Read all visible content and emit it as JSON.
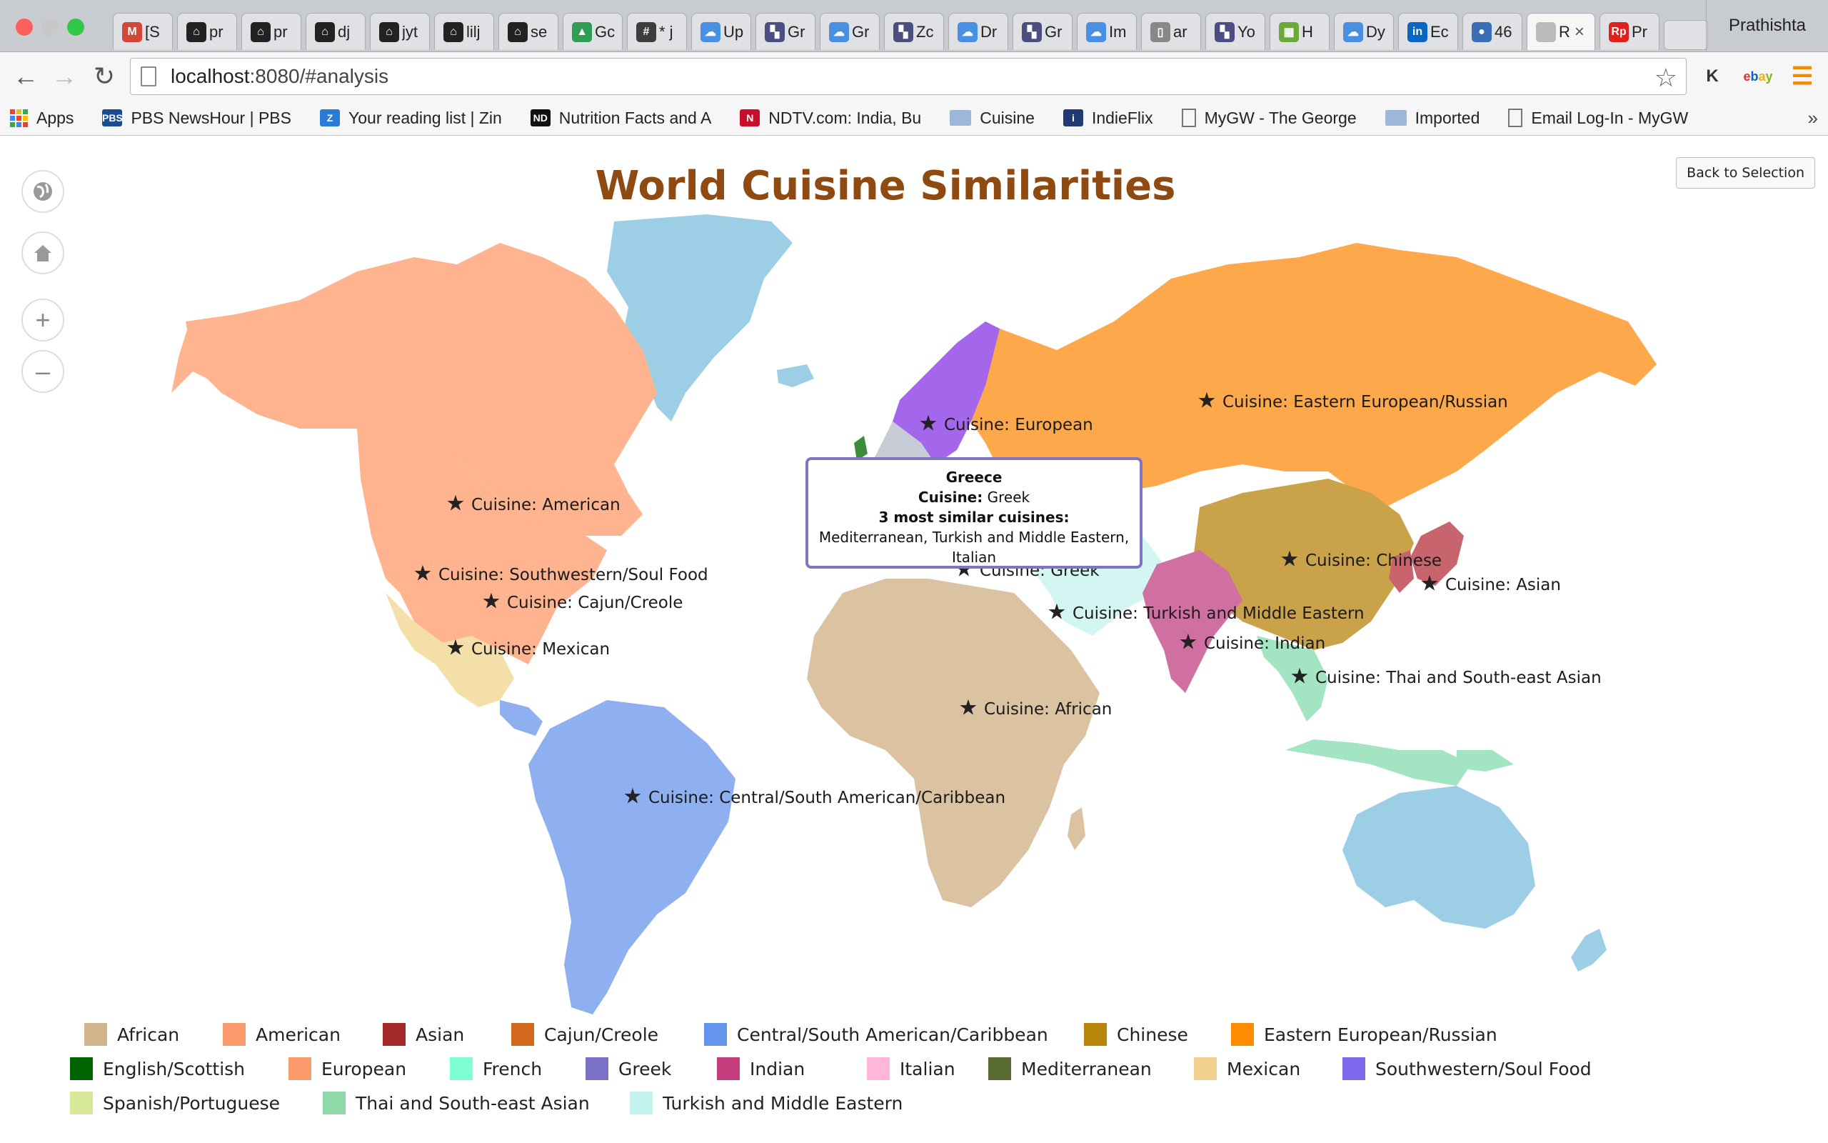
{
  "browser": {
    "tabs": [
      {
        "label": "[S",
        "icon": "gmail-icon",
        "color": "#d44638",
        "glyph": "M"
      },
      {
        "label": "pr",
        "icon": "github-icon",
        "color": "#222222",
        "glyph": "⌂"
      },
      {
        "label": "pr",
        "icon": "github-icon",
        "color": "#222222",
        "glyph": "⌂"
      },
      {
        "label": "dj",
        "icon": "github-icon",
        "color": "#222222",
        "glyph": "⌂"
      },
      {
        "label": "jyt",
        "icon": "github-icon",
        "color": "#222222",
        "glyph": "⌂"
      },
      {
        "label": "lilj",
        "icon": "github-icon",
        "color": "#222222",
        "glyph": "⌂"
      },
      {
        "label": "se",
        "icon": "github-icon",
        "color": "#222222",
        "glyph": "⌂"
      },
      {
        "label": "Gc",
        "icon": "drive-icon",
        "color": "#2f9e55",
        "glyph": "▲"
      },
      {
        "label": "* j",
        "icon": "hash-icon",
        "color": "#3d3d3d",
        "glyph": "#"
      },
      {
        "label": "Up",
        "icon": "cloud-icon",
        "color": "#4a90e2",
        "glyph": "☁"
      },
      {
        "label": "Gr",
        "icon": "grad-icon",
        "color": "#4b4f80",
        "glyph": "▚"
      },
      {
        "label": "Gr",
        "icon": "cloud-icon",
        "color": "#4a90e2",
        "glyph": "☁"
      },
      {
        "label": "Zc",
        "icon": "grad-icon",
        "color": "#4b4f80",
        "glyph": "▚"
      },
      {
        "label": "Dr",
        "icon": "cloud-icon",
        "color": "#4a90e2",
        "glyph": "☁"
      },
      {
        "label": "Gr",
        "icon": "grad-icon",
        "color": "#4b4f80",
        "glyph": "▚"
      },
      {
        "label": "Im",
        "icon": "cloud-icon",
        "color": "#4a90e2",
        "glyph": "☁"
      },
      {
        "label": "ar",
        "icon": "doc-icon",
        "color": "#888888",
        "glyph": "▯"
      },
      {
        "label": "Yo",
        "icon": "grad-icon",
        "color": "#4b4f80",
        "glyph": "▚"
      },
      {
        "label": "H",
        "icon": "chart-icon",
        "color": "#6aaa3b",
        "glyph": "▦"
      },
      {
        "label": "Dy",
        "icon": "cloud-icon",
        "color": "#4a90e2",
        "glyph": "☁"
      },
      {
        "label": "Ec",
        "icon": "linkedin-icon",
        "color": "#0a66c2",
        "glyph": "in"
      },
      {
        "label": "46",
        "icon": "globe-icon",
        "color": "#3a6fb5",
        "glyph": "●"
      },
      {
        "label": "R",
        "icon": "page-icon",
        "color": "#bbbbbb",
        "glyph": "",
        "active": true
      },
      {
        "label": "Pr",
        "icon": "rp-icon",
        "color": "#e0201b",
        "glyph": "Rp"
      }
    ],
    "profile_name": "Prathishta",
    "url_host": "localhost",
    "url_rest": ":8080/#analysis",
    "bookmarks": [
      {
        "label": "Apps",
        "kind": "apps"
      },
      {
        "label": "PBS NewsHour | PBS",
        "kind": "icon",
        "color": "#1a4d8f",
        "glyph": "PBS"
      },
      {
        "label": "Your reading list | Zin",
        "kind": "icon",
        "color": "#2a7bd8",
        "glyph": "Z"
      },
      {
        "label": "Nutrition Facts and A",
        "kind": "icon",
        "color": "#111111",
        "glyph": "ND"
      },
      {
        "label": "NDTV.com: India, Bu",
        "kind": "icon",
        "color": "#c8102e",
        "glyph": "N"
      },
      {
        "label": "Cuisine",
        "kind": "folder"
      },
      {
        "label": "IndieFlix",
        "kind": "icon",
        "color": "#1f3b73",
        "glyph": "i"
      },
      {
        "label": "MyGW - The George",
        "kind": "doc"
      },
      {
        "label": "Imported",
        "kind": "folder"
      },
      {
        "label": "Email Log-In - MyGW",
        "kind": "doc"
      }
    ],
    "more_label": "»"
  },
  "page": {
    "title": "World Cuisine Similarities",
    "back_button": "Back to Selection"
  },
  "map": {
    "star_glyph": "★",
    "markers": [
      {
        "id": "european",
        "text": "Cuisine: European"
      },
      {
        "id": "eastern",
        "text": "Cuisine: Eastern European/Russian"
      },
      {
        "id": "american",
        "text": "Cuisine: American"
      },
      {
        "id": "southwestern",
        "text": "Cuisine: Southwestern/Soul Food"
      },
      {
        "id": "cajun",
        "text": "Cuisine: Cajun/Creole"
      },
      {
        "id": "mexican",
        "text": "Cuisine: Mexican"
      },
      {
        "id": "greek",
        "text": "Cuisine: Greek"
      },
      {
        "id": "chinese",
        "text": "Cuisine: Chinese"
      },
      {
        "id": "asian",
        "text": "Cuisine: Asian"
      },
      {
        "id": "turkish",
        "text": "Cuisine: Turkish and Middle Eastern"
      },
      {
        "id": "indian",
        "text": "Cuisine: Indian"
      },
      {
        "id": "thai",
        "text": "Cuisine: Thai and South-east Asian"
      },
      {
        "id": "african",
        "text": "Cuisine: African"
      },
      {
        "id": "central",
        "text": "Cuisine: Central/South American/Caribbean"
      }
    ],
    "tooltip": {
      "country": "Greece",
      "cuisine_label": "Cuisine:",
      "cuisine_value": "Greek",
      "similar_label": "3 most similar cuisines:",
      "similar_value": "Mediterranean, Turkish and Middle Eastern, Italian"
    }
  },
  "legend": [
    {
      "label": "African",
      "color": "#d2b48c"
    },
    {
      "label": "American",
      "color": "#fa9a6a"
    },
    {
      "label": "Asian",
      "color": "#a52a2a"
    },
    {
      "label": "Cajun/Creole",
      "color": "#d2691e"
    },
    {
      "label": "Central/South American/Caribbean",
      "color": "#6495ed"
    },
    {
      "label": "Chinese",
      "color": "#b8860b"
    },
    {
      "label": "Eastern European/Russian",
      "color": "#ff8c00"
    },
    {
      "label": "English/Scottish",
      "color": "#006400"
    },
    {
      "label": "European",
      "color": "#fa9a6a"
    },
    {
      "label": "French",
      "color": "#7fffd4"
    },
    {
      "label": "Greek",
      "color": "#7b72c8"
    },
    {
      "label": "Indian",
      "color": "#c63d7e"
    },
    {
      "label": "Italian",
      "color": "#ffb6d9"
    },
    {
      "label": "Mediterranean",
      "color": "#556b2f"
    },
    {
      "label": "Mexican",
      "color": "#f0d08c"
    },
    {
      "label": "Southwestern/Soul Food",
      "color": "#7b68ee"
    },
    {
      "label": "Spanish/Portuguese",
      "color": "#d7e89a"
    },
    {
      "label": "Thai and South-east Asian",
      "color": "#8fd8a8"
    },
    {
      "label": "Turkish and Middle Eastern",
      "color": "#c4f2ef"
    }
  ]
}
